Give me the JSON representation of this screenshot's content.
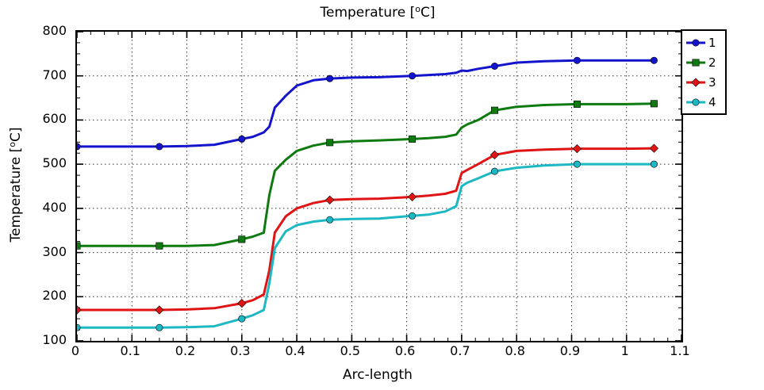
{
  "chart_data": {
    "type": "line",
    "title_parts": {
      "prefix": "Temperature [",
      "sup": "o",
      "suffix": "C]"
    },
    "ylabel_parts": {
      "prefix": "Temperature [",
      "sup": "o",
      "suffix": "C]"
    },
    "xlabel": "Arc-length",
    "xlim": [
      0,
      1.1
    ],
    "ylim": [
      100,
      800
    ],
    "xticks": [
      0,
      0.1,
      0.2,
      0.3,
      0.4,
      0.5,
      0.6,
      0.7,
      0.8,
      0.9,
      1,
      1.1
    ],
    "xtick_labels": [
      "0",
      "0.1",
      "0.2",
      "0.3",
      "0.4",
      "0.5",
      "0.6",
      "0.7",
      "0.8",
      "0.9",
      "1",
      "1.1"
    ],
    "yticks": [
      100,
      200,
      300,
      400,
      500,
      600,
      700,
      800
    ],
    "ytick_labels": [
      "100",
      "200",
      "300",
      "400",
      "500",
      "600",
      "700",
      "800"
    ],
    "grid": "dotted",
    "legend_position": "outside-top-right",
    "x": [
      0,
      0.05,
      0.1,
      0.15,
      0.2,
      0.25,
      0.3,
      0.32,
      0.34,
      0.35,
      0.36,
      0.38,
      0.4,
      0.43,
      0.46,
      0.5,
      0.55,
      0.61,
      0.64,
      0.67,
      0.69,
      0.7,
      0.71,
      0.73,
      0.76,
      0.8,
      0.85,
      0.91,
      0.95,
      1.0,
      1.05
    ],
    "marker_indices": [
      0,
      3,
      6,
      14,
      17,
      24,
      27,
      30
    ],
    "series": [
      {
        "name": "1",
        "color": "#1414cc",
        "marker": "circle",
        "values": [
          540,
          540,
          540,
          540,
          541,
          544,
          557,
          562,
          572,
          585,
          628,
          655,
          678,
          690,
          694,
          696,
          697,
          700,
          702,
          704,
          707,
          712,
          711,
          716,
          722,
          730,
          733,
          735,
          735,
          735,
          735
        ]
      },
      {
        "name": "2",
        "color": "#0f7a0f",
        "marker": "square",
        "values": [
          315,
          315,
          315,
          315,
          315,
          317,
          330,
          336,
          345,
          430,
          485,
          510,
          530,
          542,
          549,
          552,
          554,
          557,
          559,
          562,
          567,
          583,
          590,
          600,
          622,
          630,
          634,
          636,
          636,
          636,
          637
        ]
      },
      {
        "name": "3",
        "color": "#e01414",
        "marker": "diamond",
        "values": [
          170,
          170,
          170,
          170,
          171,
          174,
          185,
          192,
          205,
          260,
          345,
          382,
          400,
          412,
          419,
          421,
          422,
          426,
          429,
          433,
          440,
          480,
          487,
          500,
          521,
          530,
          533,
          535,
          535,
          535,
          536
        ]
      },
      {
        "name": "4",
        "color": "#1cb8c4",
        "marker": "circle",
        "values": [
          130,
          130,
          130,
          130,
          131,
          133,
          150,
          158,
          170,
          230,
          310,
          348,
          362,
          370,
          374,
          376,
          377,
          383,
          386,
          393,
          405,
          450,
          458,
          468,
          484,
          492,
          497,
          500,
          500,
          500,
          500
        ]
      }
    ]
  }
}
